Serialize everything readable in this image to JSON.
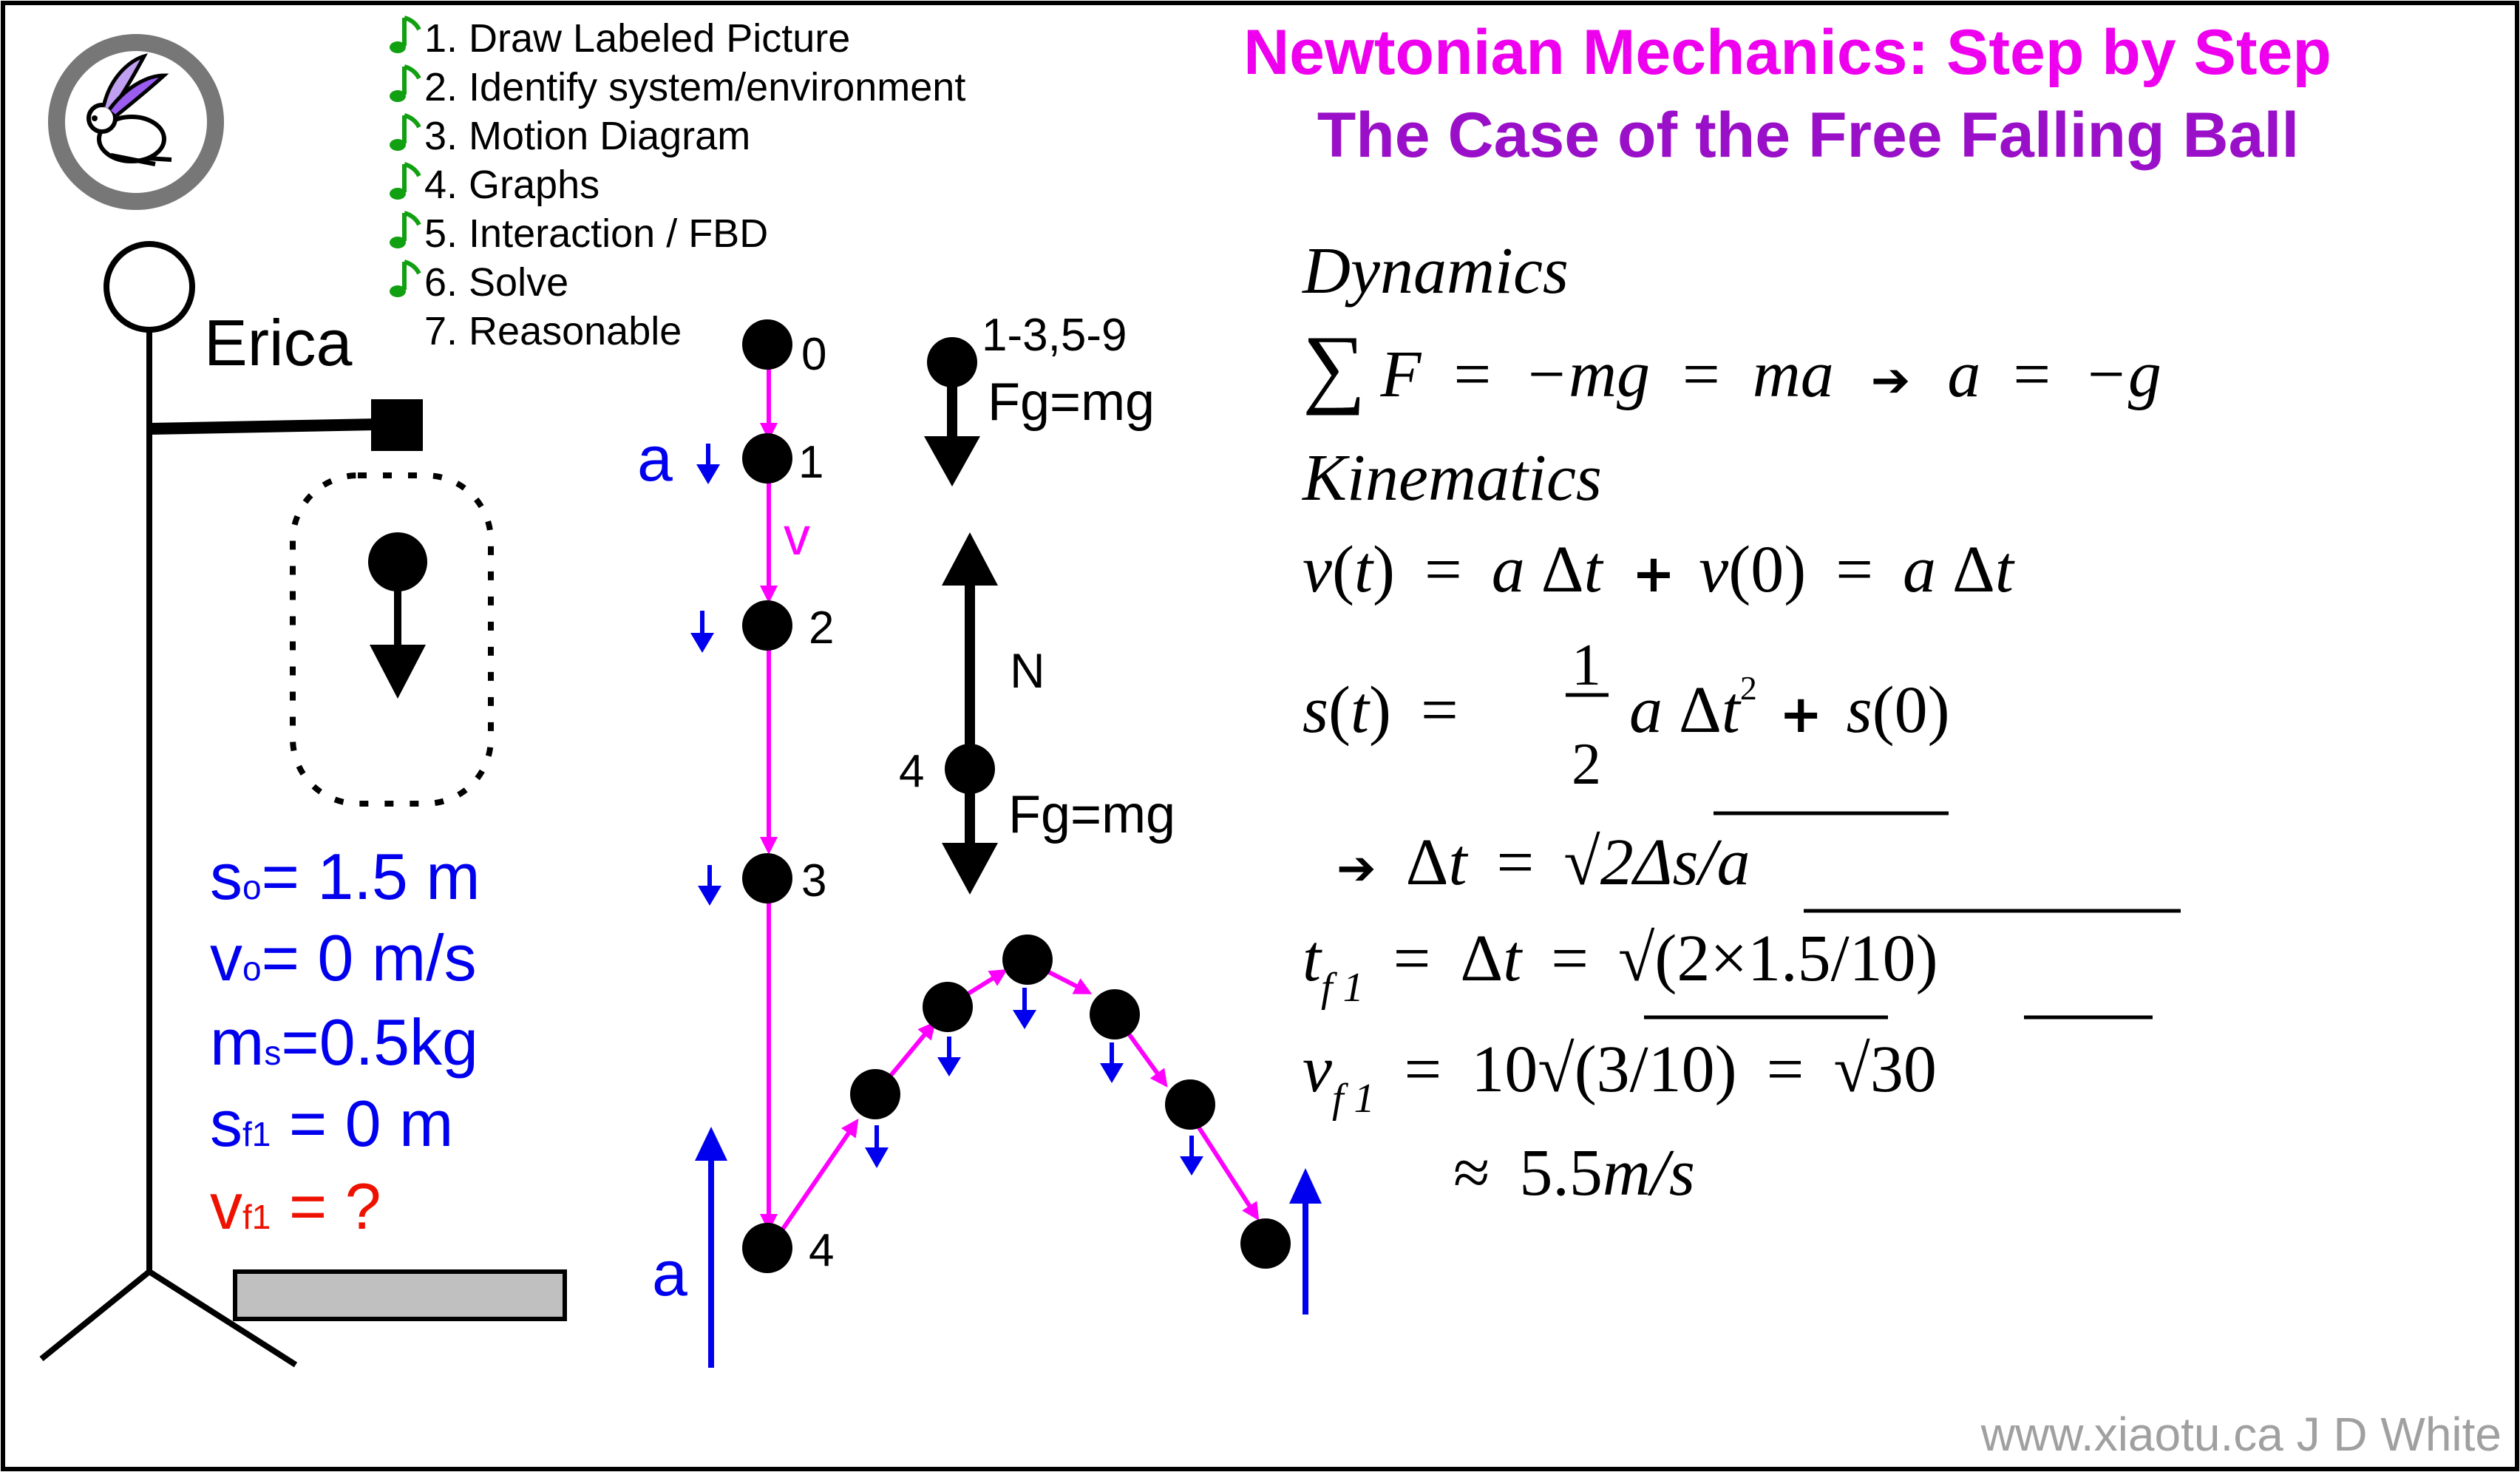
{
  "title": {
    "line1": "Newtonian Mechanics: Step by Step",
    "line2": "The Case of the Free Falling Ball"
  },
  "steps": [
    "1. Draw Labeled Picture",
    "2. Identify system/environment",
    "3. Motion Diagram",
    "4. Graphs",
    "5. Interaction / FBD",
    "6. Solve",
    "7. Reasonable"
  ],
  "checked_steps": 6,
  "person_label": "Erica",
  "givens": {
    "s0_sym": "s",
    "s0_sub": "o",
    "s0_rest": "= 1.5 m",
    "v0_sym": "v",
    "v0_sub": "o",
    "v0_rest": "= 0 m/s",
    "ms_sym": "m",
    "ms_sub": "s",
    "ms_rest": "=0.5kg",
    "sf1_sym": "s",
    "sf1_sub": "f1",
    "sf1_rest": " = 0 m",
    "vf1_sym": "v",
    "vf1_sub": "f1",
    "vf1_rest": " = ?"
  },
  "motion_diagram": {
    "points": [
      "0",
      "1",
      "2",
      "3",
      "4"
    ],
    "accel_label": "a",
    "velocity_label": "v",
    "bottom_accel_label": "a"
  },
  "fbd": {
    "top_range_label": "1-3,5-9",
    "top_force_label": "Fg=mg",
    "normal_label": "N",
    "point4_label": "4",
    "bottom_force_label": "Fg=mg"
  },
  "equations": {
    "dynamics_heading": "Dynamics",
    "kinematics_heading": "Kinematics",
    "sum": "∑",
    "F": "F",
    "neg_mg": "−mg",
    "ma": "ma",
    "a_eq": "a",
    "neg_g": "−g",
    "eq": "=",
    "arrow": "➔",
    "v_t": "v",
    "t": "t",
    "paren_open": "(",
    "paren_close": ")",
    "a": "a",
    "delta": "Δ",
    "plus": "+",
    "zero": "0",
    "s_t": "s",
    "half_num": "1",
    "half_den": "2",
    "sq": "2",
    "sqrt": "√",
    "sqrt_inner": "2Δs/a",
    "tf1_sym": "t",
    "f1_sub": "f 1",
    "tf1_inner": "(2×1.5/10)",
    "vf1_sym": "v",
    "ten": "10",
    "vf1_inner": "(3/10)",
    "thirty": "30",
    "approx": "≈",
    "result_num": "5.5",
    "result_unit": "m/s"
  },
  "credit": "www.xiaotu.ca J D White",
  "colors": {
    "title_magenta": "#ee00ee",
    "title_purple": "#9a10c8",
    "blue": "#0000ee",
    "magenta": "#ff00ff",
    "red": "#ee1100",
    "green": "#11a011",
    "gray": "#999999",
    "credit_gray": "#a0a0a0"
  }
}
